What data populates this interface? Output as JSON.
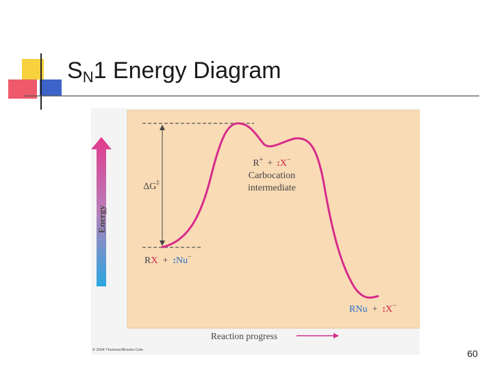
{
  "slide": {
    "title_main": "S",
    "title_subscript": "N",
    "title_rest": "1 Energy Diagram",
    "page_number": "60"
  },
  "figure": {
    "y_axis_label": "Energy",
    "x_axis_label": "Reaction progress",
    "delta_g_label": "ΔG",
    "delta_g_superscript": "‡",
    "reactants": {
      "r": "R",
      "x": "X",
      "plus": "+",
      "colon": ":",
      "nu": "Nu",
      "charge": "−"
    },
    "intermediate": {
      "r": "R",
      "r_charge": "+",
      "plus": "+",
      "colon": ":",
      "x": "X",
      "x_charge": "−",
      "line1": "Carbocation",
      "line2": "intermediate"
    },
    "products": {
      "rnu": "RNu",
      "plus": "+",
      "colon": ":",
      "x": "X",
      "charge": "−"
    },
    "copyright": "© 2004 Thomson/Brooks Cole"
  },
  "colors": {
    "panel_background": "#f9dbb6",
    "curve": "#d62b8a",
    "accent_red": "#cc2244",
    "accent_blue": "#2b6fc4",
    "arrow_top": "#e23a8c",
    "arrow_bottom": "#2aa7e0"
  }
}
